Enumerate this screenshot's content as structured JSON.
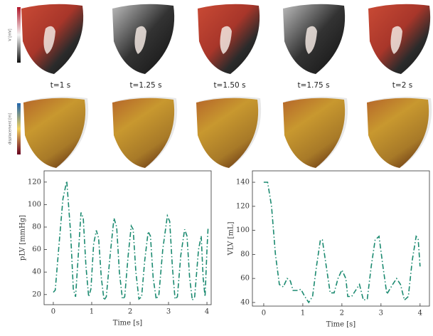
{
  "frames": [
    "t=1 s",
    "t=1.25 s",
    "t=1.50 s",
    "t=1.75 s",
    "t=2 s"
  ],
  "colorbars": [
    "V [mV]",
    "displacement [m]"
  ],
  "chart_data": [
    {
      "type": "line",
      "xlabel": "Time [s]",
      "ylabel": "pLV [mmHg]",
      "xlim": [
        -0.24,
        4.11
      ],
      "ylim": [
        11,
        130
      ],
      "xticks": [
        0,
        1,
        2,
        3,
        4
      ],
      "yticks": [
        20,
        40,
        60,
        80,
        100,
        120
      ],
      "grid": false,
      "x": [
        0,
        0.05,
        0.15,
        0.25,
        0.35,
        0.45,
        0.52,
        0.58,
        0.65,
        0.72,
        0.78,
        0.85,
        0.92,
        0.98,
        1.05,
        1.12,
        1.18,
        1.25,
        1.32,
        1.38,
        1.48,
        1.58,
        1.65,
        1.72,
        1.8,
        1.86,
        1.95,
        2.03,
        2.08,
        2.15,
        2.23,
        2.3,
        2.38,
        2.47,
        2.53,
        2.6,
        2.68,
        2.75,
        2.85,
        2.97,
        3.03,
        3.1,
        3.17,
        3.23,
        3.32,
        3.42,
        3.48,
        3.55,
        3.62,
        3.68,
        3.78,
        3.85,
        3.9,
        3.95,
        4.0,
        4.03
      ],
      "series": [
        {
          "color": "#1b8a70",
          "values": [
            22,
            24,
            65,
            105,
            121,
            75,
            25,
            18,
            55,
            93,
            88,
            45,
            18,
            25,
            65,
            77,
            70,
            35,
            15,
            18,
            55,
            88,
            80,
            40,
            16,
            18,
            55,
            81,
            78,
            40,
            16,
            18,
            50,
            76,
            72,
            35,
            16,
            20,
            60,
            90,
            85,
            45,
            16,
            18,
            55,
            78,
            72,
            35,
            15,
            18,
            60,
            72,
            35,
            18,
            60,
            80
          ]
        }
      ]
    },
    {
      "type": "line",
      "xlabel": "Time [s]",
      "ylabel": "VLV [mL]",
      "xlim": [
        -0.29,
        4.24
      ],
      "ylim": [
        37,
        149.5
      ],
      "xticks": [
        0,
        1,
        2,
        3,
        4
      ],
      "yticks": [
        40,
        60,
        80,
        100,
        120,
        140
      ],
      "grid": false,
      "x": [
        0,
        0.1,
        0.2,
        0.3,
        0.4,
        0.5,
        0.6,
        0.68,
        0.75,
        0.85,
        0.95,
        1.05,
        1.15,
        1.25,
        1.35,
        1.45,
        1.5,
        1.6,
        1.7,
        1.8,
        1.9,
        2.0,
        2.1,
        2.15,
        2.25,
        2.35,
        2.45,
        2.55,
        2.65,
        2.75,
        2.85,
        2.95,
        3.05,
        3.15,
        3.3,
        3.4,
        3.5,
        3.6,
        3.7,
        3.8,
        3.9,
        3.95,
        4.0
      ],
      "series": [
        {
          "color": "#1b8a70",
          "values": [
            140,
            140,
            120,
            80,
            55,
            53,
            60,
            58,
            50,
            50,
            51,
            45,
            40,
            45,
            70,
            92,
            92,
            70,
            48,
            48,
            60,
            67,
            60,
            45,
            45,
            50,
            55,
            42,
            43,
            70,
            92,
            95,
            70,
            47,
            55,
            60,
            55,
            42,
            45,
            75,
            95,
            93,
            70
          ]
        }
      ]
    }
  ]
}
